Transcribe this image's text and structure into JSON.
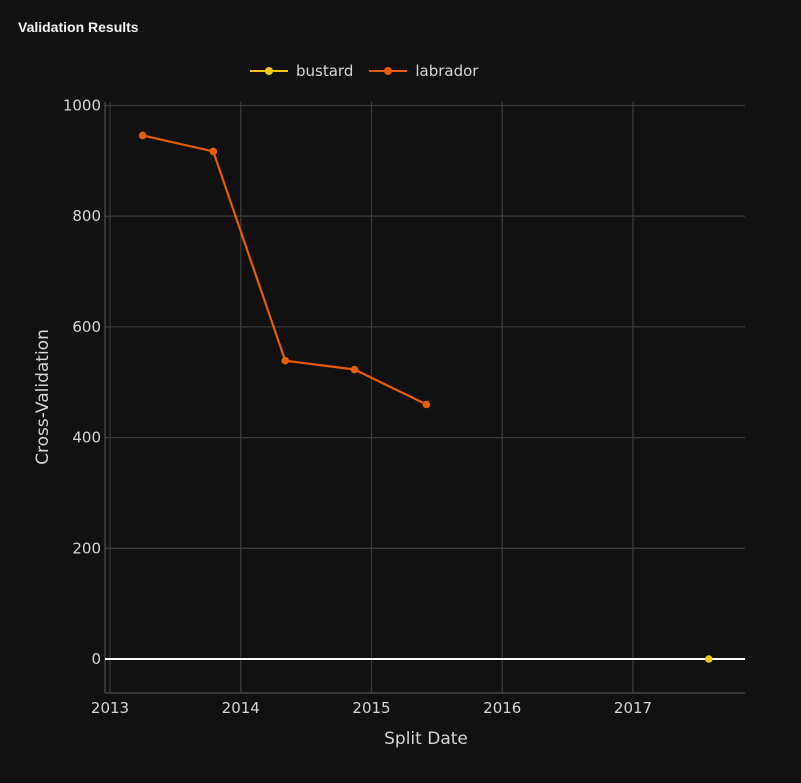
{
  "header": {
    "title": "Validation Results"
  },
  "legend": {
    "items": [
      {
        "label": "bustard",
        "color": "#f5c518"
      },
      {
        "label": "labrador",
        "color": "#e85d04"
      }
    ]
  },
  "axes": {
    "xlabel": "Split Date",
    "ylabel": "Cross-Validation",
    "xticks": [
      "2013",
      "2014",
      "2015",
      "2016",
      "2017"
    ],
    "yticks": [
      "0",
      "200",
      "400",
      "600",
      "800",
      "1000"
    ]
  },
  "chart_data": {
    "type": "line",
    "title": "Validation Results",
    "xlabel": "Split Date",
    "ylabel": "Cross-Validation",
    "x_tick_labels": [
      "2013",
      "2014",
      "2015",
      "2016",
      "2017"
    ],
    "y_tick_labels": [
      0,
      200,
      400,
      600,
      800,
      1000
    ],
    "xlim": [
      2012.98,
      2017.85
    ],
    "ylim": [
      -62,
      1005
    ],
    "grid": true,
    "legend_position": "top",
    "series": [
      {
        "name": "bustard",
        "color": "#f5c518",
        "x": [
          2017.58
        ],
        "values": [
          0
        ]
      },
      {
        "name": "labrador",
        "color": "#e85d04",
        "x": [
          2013.25,
          2013.79,
          2014.34,
          2014.87,
          2015.42
        ],
        "values": [
          946,
          917,
          539,
          523,
          460
        ]
      }
    ]
  }
}
